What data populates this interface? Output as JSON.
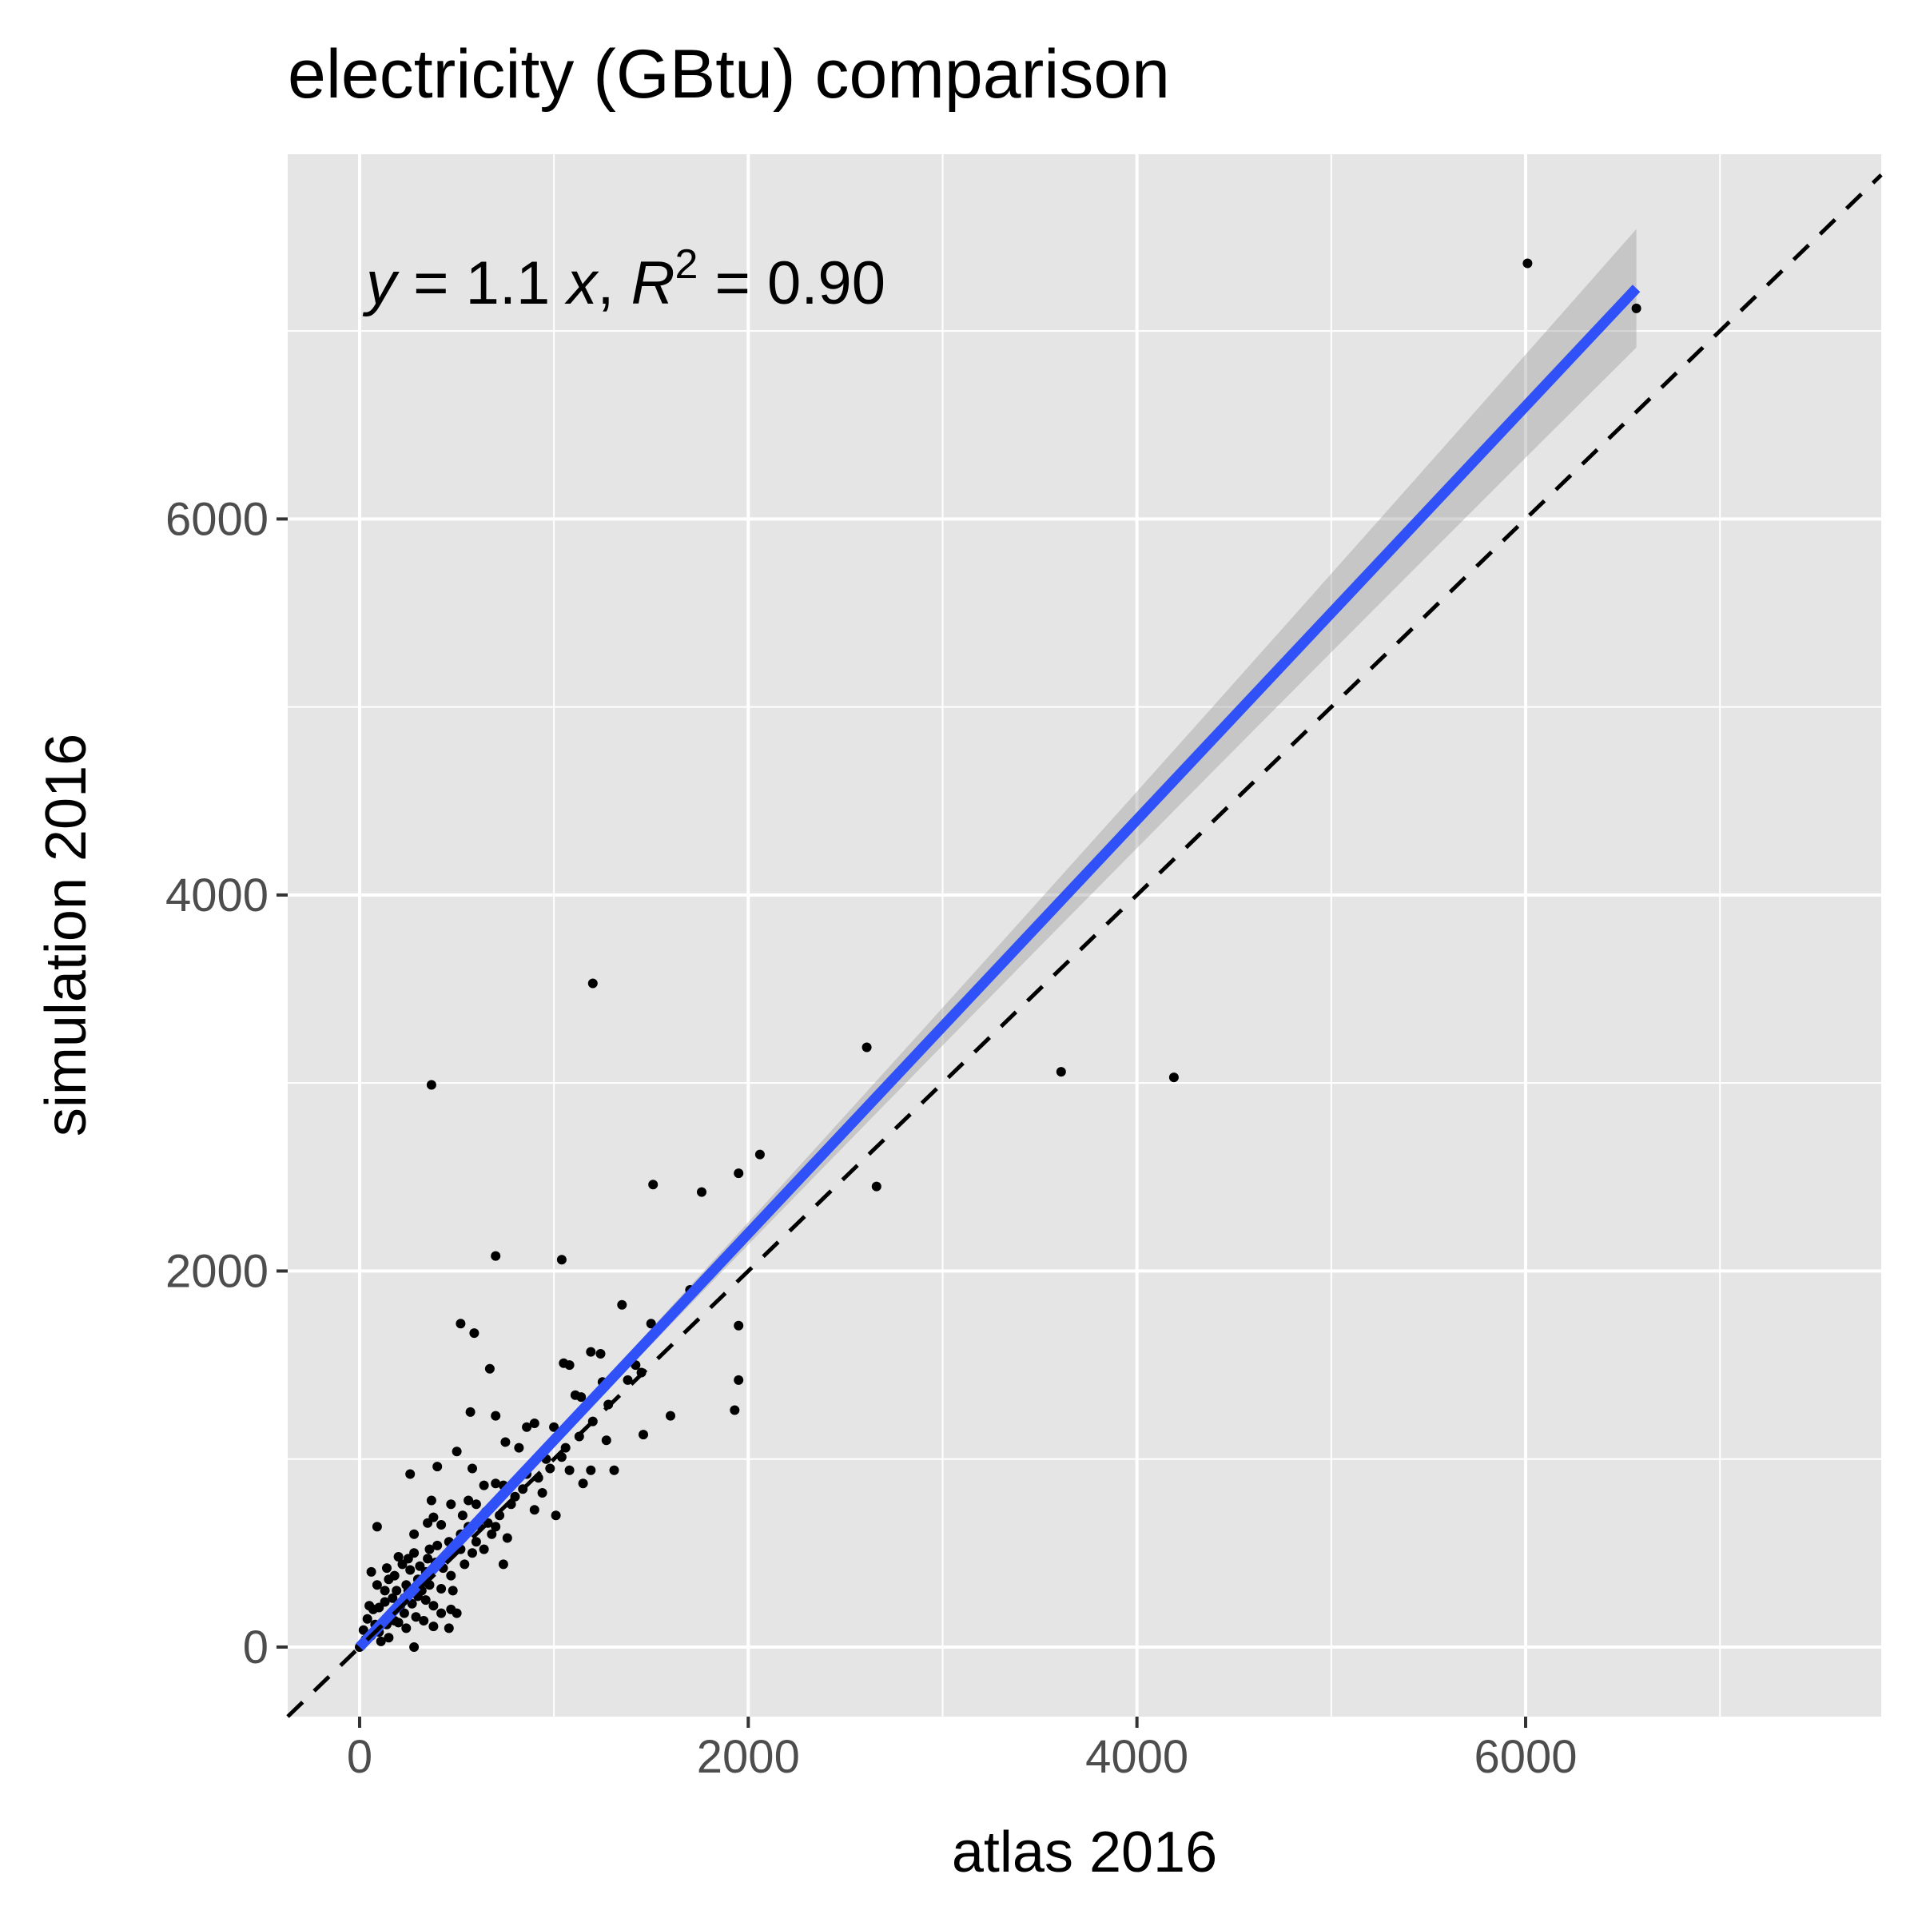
{
  "chart_data": {
    "type": "scatter",
    "title": "electricity (GBtu) comparison",
    "xlabel": "atlas 2016",
    "ylabel": "simulation 2016",
    "xlim": [
      -370,
      7830
    ],
    "ylim": [
      -370,
      7940
    ],
    "xticks": [
      0,
      2000,
      4000,
      6000
    ],
    "yticks": [
      0,
      2000,
      4000,
      6000
    ],
    "x_tick_labels": [
      "0",
      "2000",
      "4000",
      "6000"
    ],
    "y_tick_labels": [
      "0",
      "2000",
      "4000",
      "6000"
    ],
    "minor_grid": true,
    "background_color": "#e5e5e5",
    "grid_color": "#ffffff",
    "annotation": {
      "y": "y",
      "eq": " = 1.1 ",
      "x": "x",
      "comma": ", ",
      "R": "R",
      "sup": "2",
      "rest": " = 0.90"
    },
    "fit": {
      "name": "linear fit",
      "slope": 1.1,
      "r_squared": 0.9,
      "x_range": [
        0,
        6570
      ],
      "color": "#3050f8",
      "ci_halfwidth_at_max": 300
    },
    "reference_line": {
      "name": "y = x",
      "slope": 1,
      "style": "dashed",
      "color": "#000000"
    },
    "points": [
      [
        6010,
        7360
      ],
      [
        6570,
        7120
      ],
      [
        1200,
        3530
      ],
      [
        2610,
        3190
      ],
      [
        3610,
        3060
      ],
      [
        4190,
        3030
      ],
      [
        370,
        2990
      ],
      [
        2060,
        2620
      ],
      [
        1950,
        2520
      ],
      [
        1510,
        2460
      ],
      [
        2660,
        2450
      ],
      [
        1760,
        2420
      ],
      [
        700,
        2080
      ],
      [
        1040,
        2060
      ],
      [
        1350,
        1820
      ],
      [
        1700,
        1900
      ],
      [
        520,
        1720
      ],
      [
        590,
        1670
      ],
      [
        1500,
        1720
      ],
      [
        1950,
        1710
      ],
      [
        1190,
        1570
      ],
      [
        1240,
        1560
      ],
      [
        1050,
        1510
      ],
      [
        1080,
        1500
      ],
      [
        670,
        1480
      ],
      [
        1450,
        1460
      ],
      [
        1300,
        1430
      ],
      [
        1250,
        1410
      ],
      [
        1950,
        1420
      ],
      [
        1110,
        1340
      ],
      [
        1140,
        1330
      ],
      [
        570,
        1250
      ],
      [
        700,
        1230
      ],
      [
        1600,
        1230
      ],
      [
        1930,
        1260
      ],
      [
        860,
        1170
      ],
      [
        900,
        1190
      ],
      [
        1000,
        1170
      ],
      [
        750,
        1090
      ],
      [
        500,
        1040
      ],
      [
        820,
        1060
      ],
      [
        1040,
        1010
      ],
      [
        1270,
        1100
      ],
      [
        1460,
        1130
      ],
      [
        1080,
        940
      ],
      [
        1190,
        940
      ],
      [
        1310,
        940
      ],
      [
        1150,
        870
      ],
      [
        400,
        960
      ],
      [
        580,
        950
      ],
      [
        260,
        920
      ],
      [
        640,
        860
      ],
      [
        700,
        870
      ],
      [
        740,
        860
      ],
      [
        820,
        900
      ],
      [
        860,
        920
      ],
      [
        960,
        1000
      ],
      [
        800,
        800
      ],
      [
        940,
        820
      ],
      [
        900,
        730
      ],
      [
        1010,
        700
      ],
      [
        370,
        780
      ],
      [
        470,
        760
      ],
      [
        530,
        700
      ],
      [
        600,
        760
      ],
      [
        650,
        720
      ],
      [
        700,
        640
      ],
      [
        760,
        580
      ],
      [
        720,
        700
      ],
      [
        680,
        600
      ],
      [
        420,
        650
      ],
      [
        560,
        640
      ],
      [
        380,
        690
      ],
      [
        90,
        640
      ],
      [
        350,
        660
      ],
      [
        280,
        600
      ],
      [
        460,
        560
      ],
      [
        520,
        520
      ],
      [
        580,
        500
      ],
      [
        640,
        520
      ],
      [
        740,
        440
      ],
      [
        400,
        540
      ],
      [
        360,
        520
      ],
      [
        280,
        500
      ],
      [
        200,
        480
      ],
      [
        140,
        420
      ],
      [
        60,
        400
      ],
      [
        90,
        330
      ],
      [
        150,
        360
      ],
      [
        190,
        300
      ],
      [
        240,
        330
      ],
      [
        300,
        270
      ],
      [
        340,
        250
      ],
      [
        380,
        220
      ],
      [
        420,
        180
      ],
      [
        470,
        200
      ],
      [
        500,
        180
      ],
      [
        330,
        140
      ],
      [
        380,
        110
      ],
      [
        460,
        100
      ],
      [
        290,
        160
      ],
      [
        230,
        180
      ],
      [
        180,
        140
      ],
      [
        140,
        120
      ],
      [
        100,
        80
      ],
      [
        60,
        60
      ],
      [
        30,
        40
      ],
      [
        10,
        10
      ],
      [
        0,
        0
      ],
      [
        20,
        90
      ],
      [
        40,
        150
      ],
      [
        70,
        200
      ],
      [
        100,
        210
      ],
      [
        130,
        240
      ],
      [
        170,
        260
      ],
      [
        210,
        220
      ],
      [
        250,
        300
      ],
      [
        280,
        0
      ],
      [
        110,
        30
      ],
      [
        150,
        50
      ],
      [
        200,
        130
      ],
      [
        240,
        100
      ],
      [
        300,
        360
      ],
      [
        340,
        400
      ],
      [
        390,
        450
      ],
      [
        430,
        420
      ],
      [
        470,
        380
      ],
      [
        220,
        440
      ],
      [
        250,
        470
      ],
      [
        310,
        430
      ],
      [
        360,
        330
      ],
      [
        420,
        310
      ],
      [
        480,
        300
      ],
      [
        540,
        440
      ],
      [
        600,
        560
      ],
      [
        660,
        660
      ],
      [
        780,
        760
      ],
      [
        840,
        840
      ],
      [
        920,
        900
      ],
      [
        980,
        950
      ],
      [
        1060,
        1060
      ],
      [
        1130,
        1120
      ],
      [
        1200,
        1200
      ],
      [
        1280,
        1290
      ],
      [
        1380,
        1420
      ],
      [
        1420,
        1500
      ],
      [
        80,
        120
      ],
      [
        160,
        170
      ],
      [
        270,
        230
      ],
      [
        320,
        300
      ],
      [
        50,
        220
      ],
      [
        130,
        300
      ],
      [
        180,
        380
      ],
      [
        230,
        260
      ],
      [
        260,
        410
      ],
      [
        350,
        470
      ],
      [
        450,
        480
      ],
      [
        520,
        600
      ],
      [
        610,
        650
      ],
      [
        560,
        780
      ]
    ]
  }
}
